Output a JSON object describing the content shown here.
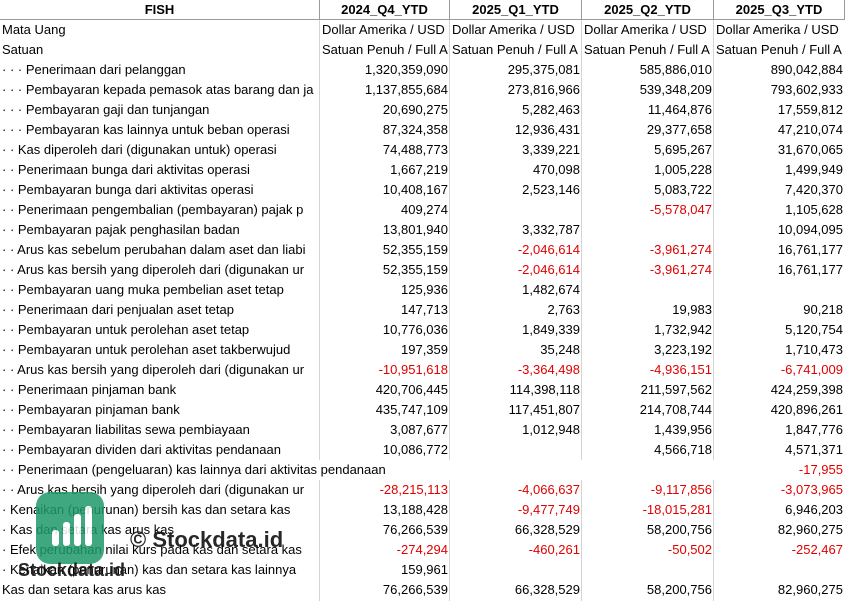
{
  "table": {
    "header": [
      "FISH",
      "2024_Q4_YTD",
      "2025_Q1_YTD",
      "2025_Q2_YTD",
      "2025_Q3_YTD"
    ],
    "rows": [
      [
        "Mata Uang",
        "Dollar Amerika / USD",
        "Dollar Amerika / USD",
        "Dollar Amerika / USD",
        "Dollar Amerika / USD"
      ],
      [
        "Satuan",
        "Satuan Penuh / Full A",
        "Satuan Penuh / Full A",
        "Satuan Penuh / Full A",
        "Satuan Penuh / Full A"
      ],
      [
        "· · · Penerimaan dari pelanggan",
        "1,320,359,090",
        "295,375,081",
        "585,886,010",
        "890,042,884"
      ],
      [
        "· · · Pembayaran kepada pemasok atas barang dan ja",
        "1,137,855,684",
        "273,816,966",
        "539,348,209",
        "793,602,933"
      ],
      [
        "· · · Pembayaran gaji dan tunjangan",
        "20,690,275",
        "5,282,463",
        "11,464,876",
        "17,559,812"
      ],
      [
        "· · · Pembayaran kas lainnya untuk beban operasi",
        "87,324,358",
        "12,936,431",
        "29,377,658",
        "47,210,074"
      ],
      [
        "· · Kas diperoleh dari (digunakan untuk) operasi",
        "74,488,773",
        "3,339,221",
        "5,695,267",
        "31,670,065"
      ],
      [
        "· · Penerimaan bunga dari aktivitas operasi",
        "1,667,219",
        "470,098",
        "1,005,228",
        "1,499,949"
      ],
      [
        "· · Pembayaran bunga dari aktivitas operasi",
        "10,408,167",
        "2,523,146",
        "5,083,722",
        "7,420,370"
      ],
      [
        "· · Penerimaan pengembalian (pembayaran) pajak p",
        "409,274",
        null,
        "-5,578,047",
        "1,105,628"
      ],
      [
        "· · Pembayaran pajak penghasilan badan",
        "13,801,940",
        "3,332,787",
        null,
        "10,094,095"
      ],
      [
        "· · Arus kas sebelum perubahan dalam aset dan liabi",
        "52,355,159",
        "-2,046,614",
        "-3,961,274",
        "16,761,177"
      ],
      [
        "· · Arus kas bersih yang diperoleh dari (digunakan ur",
        "52,355,159",
        "-2,046,614",
        "-3,961,274",
        "16,761,177"
      ],
      [
        "· · Pembayaran uang muka pembelian aset tetap",
        "125,936",
        "1,482,674",
        null,
        null
      ],
      [
        "· · Penerimaan dari penjualan aset tetap",
        "147,713",
        "2,763",
        "19,983",
        "90,218"
      ],
      [
        "· · Pembayaran untuk perolehan aset tetap",
        "10,776,036",
        "1,849,339",
        "1,732,942",
        "5,120,754"
      ],
      [
        "· · Pembayaran untuk perolehan aset takberwujud",
        "197,359",
        "35,248",
        "3,223,192",
        "1,710,473"
      ],
      [
        "· · Arus kas bersih yang diperoleh dari (digunakan ur",
        "-10,951,618",
        "-3,364,498",
        "-4,936,151",
        "-6,741,009"
      ],
      [
        "· · Penerimaan pinjaman bank",
        "420,706,445",
        "114,398,118",
        "211,597,562",
        "424,259,398"
      ],
      [
        "· · Pembayaran pinjaman bank",
        "435,747,109",
        "117,451,807",
        "214,708,744",
        "420,896,261"
      ],
      [
        "· · Pembayaran liabilitas sewa pembiayaan",
        "3,087,677",
        "1,012,948",
        "1,439,956",
        "1,847,776"
      ],
      [
        "· · Pembayaran dividen dari aktivitas pendanaan",
        "10,086,772",
        null,
        "4,566,718",
        "4,571,371"
      ],
      [
        "· · Penerimaan (pengeluaran) kas lainnya dari aktivitas pendanaan",
        null,
        null,
        null,
        "-17,955"
      ],
      [
        "· · Arus kas bersih yang diperoleh dari (digunakan ur",
        "-28,215,113",
        "-4,066,637",
        "-9,117,856",
        "-3,073,965"
      ],
      [
        "· Kenaikan (penurunan) bersih kas dan setara kas",
        "13,188,428",
        "-9,477,749",
        "-18,015,281",
        "6,946,203"
      ],
      [
        "· Kas dan setara kas arus kas",
        "76,266,539",
        "66,328,529",
        "58,200,756",
        "82,960,275"
      ],
      [
        "· Efek perubahan nilai kurs pada kas dan setara kas",
        "-274,294",
        "-460,261",
        "-50,502",
        "-252,467"
      ],
      [
        "· Kenaikan (penurunan) kas dan setara kas lainnya",
        "159,961",
        null,
        null,
        null
      ],
      [
        "Kas dan setara kas arus kas",
        "76,266,539",
        "66,328,529",
        "58,200,756",
        "82,960,275"
      ]
    ]
  },
  "watermark": {
    "text": "© Stockdata.id",
    "logo_text": "Stockdata.id"
  }
}
